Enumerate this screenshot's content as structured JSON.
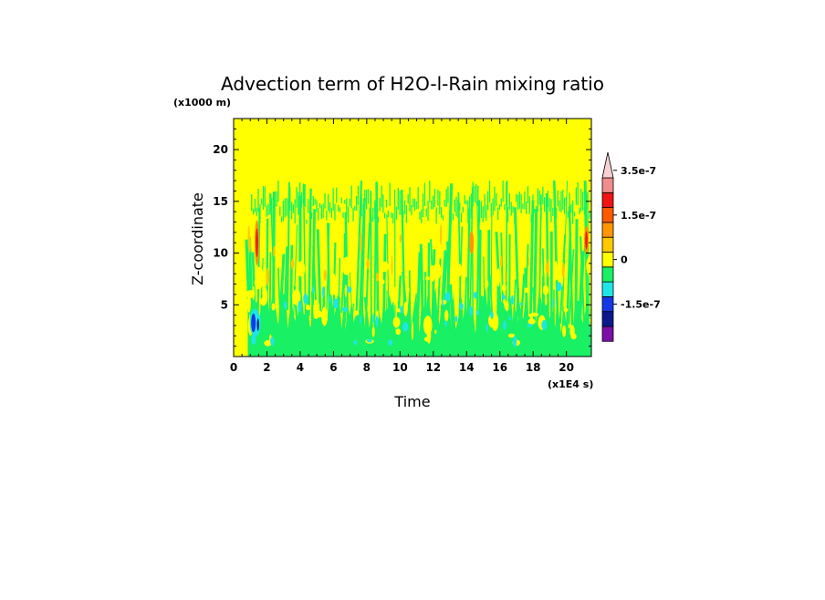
{
  "chart_data": {
    "type": "heatmap",
    "title": "Advection term of H2O-l-Rain mixing ratio",
    "xlabel": "Time",
    "ylabel": "Z-coordinate",
    "x_unit": "(x1E4 s)",
    "y_unit": "(x1000 m)",
    "xlim": [
      0,
      21.5
    ],
    "ylim": [
      0,
      23
    ],
    "x_ticks": [
      0,
      2,
      4,
      6,
      8,
      10,
      12,
      14,
      16,
      18,
      20
    ],
    "x_tick_labels": [
      "0",
      "2",
      "4",
      "6",
      "8",
      "10",
      "12",
      "14",
      "16",
      "18",
      "20"
    ],
    "y_ticks": [
      5,
      10,
      15,
      20
    ],
    "y_tick_labels": [
      "5",
      "10",
      "15",
      "20"
    ],
    "colorbar": {
      "levels": [
        {
          "color": "#7b0fa8"
        },
        {
          "color": "#0a1a8c"
        },
        {
          "color": "#1438e6"
        },
        {
          "color": "#1fe6e6"
        },
        {
          "color": "#19f064"
        },
        {
          "color": "#ffff00"
        },
        {
          "color": "#ffc800"
        },
        {
          "color": "#ff9600"
        },
        {
          "color": "#ff5a00"
        },
        {
          "color": "#f01414"
        },
        {
          "color": "#f08c8c"
        },
        {
          "color": "#f8d2d2"
        }
      ],
      "labels": [
        {
          "text": "-1.5e-7",
          "level_boundary": 2
        },
        {
          "text": "0",
          "level_boundary": 5
        },
        {
          "text": "1.5e-7",
          "level_boundary": 8
        },
        {
          "text": "3.5e-7",
          "level_boundary": 11
        }
      ]
    },
    "field": {
      "background_value": "0 (yellow)",
      "activity_z_range": [
        0,
        17
      ],
      "dominant_values": [
        "0",
        "-0.5e-7"
      ],
      "max_positive_regions": [
        {
          "t": 1.4,
          "z": [
            9,
            13
          ],
          "level": "red"
        },
        {
          "t": 21.2,
          "z": [
            10,
            12.5
          ],
          "level": "red"
        },
        {
          "t": 14.3,
          "z": [
            10,
            12
          ],
          "level": "orange"
        }
      ],
      "max_negative_regions": [
        {
          "t": 1.3,
          "z": [
            2.5,
            4
          ],
          "level": "blue"
        }
      ]
    }
  }
}
